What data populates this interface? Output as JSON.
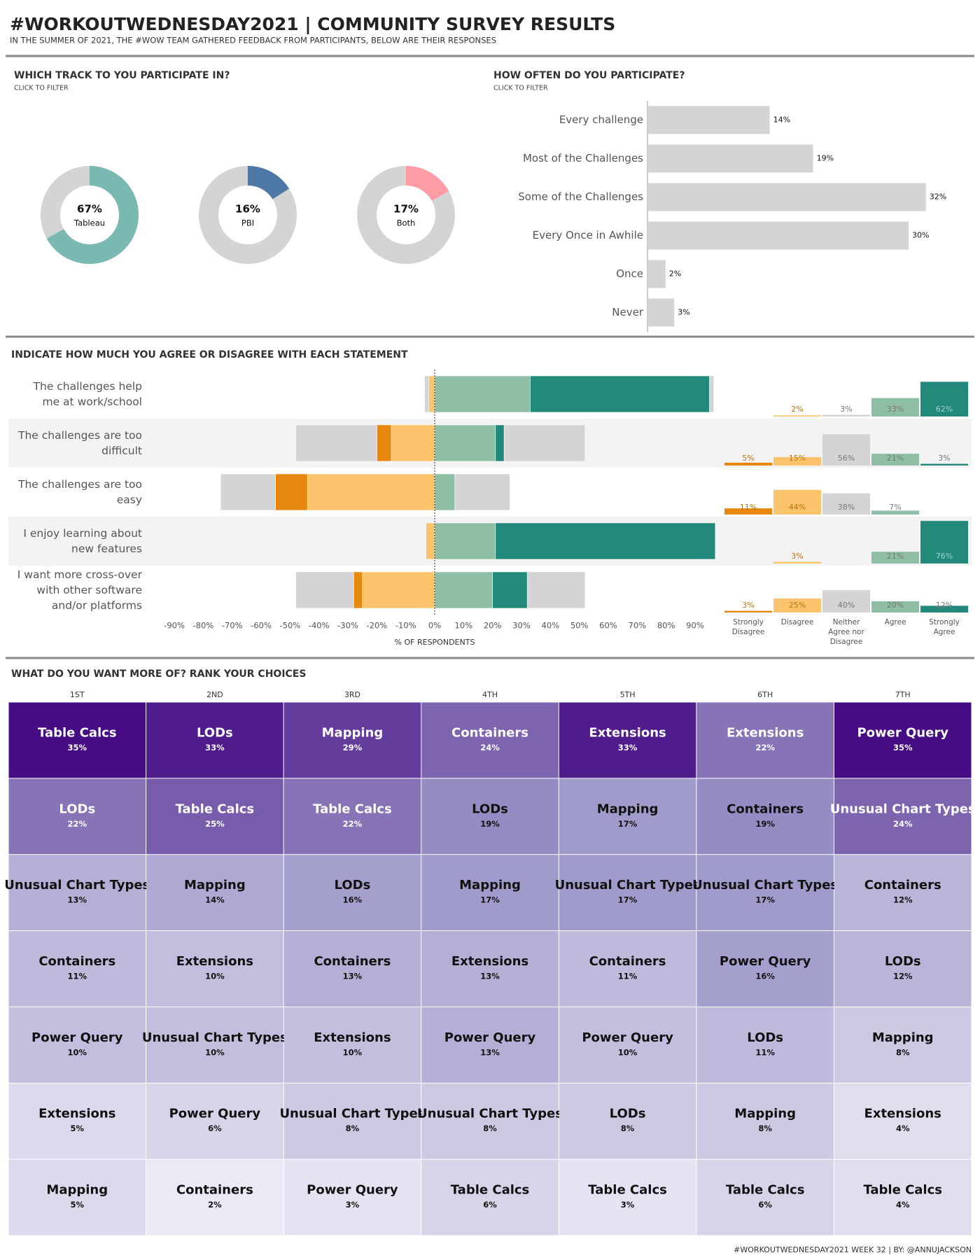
{
  "title": "#WORKOUTWEDNESDAY2021 | COMMUNITY SURVEY RESULTS",
  "subtitle": "IN THE SUMMER OF 2021, THE #WOW TEAM GATHERED FEEDBACK FROM PARTICIPANTS, BELOW ARE THEIR RESPONSES",
  "footer": "#WORKOUTWEDNESDAY2021 WEEK 32 | BY: @ANNUJACKSON",
  "chart_data": [
    {
      "type": "donut",
      "title": "WHICH TRACK TO YOU PARTICIPATE IN?",
      "subtitle": "CLICK TO FILTER",
      "categories": [
        "Tableau",
        "PBI",
        "Both"
      ],
      "values": [
        67,
        16,
        17
      ],
      "value_labels": [
        "67%",
        "16%",
        "17%"
      ],
      "colors": [
        "#7ab8b2",
        "#4e79a7",
        "#ff9da7"
      ],
      "rest_color": "#d4d4d4"
    },
    {
      "type": "hbar",
      "title": "HOW OFTEN DO YOU PARTICIPATE?",
      "subtitle": "CLICK TO FILTER",
      "categories": [
        "Every challenge",
        "Most of the Challenges",
        "Some of the Challenges",
        "Every Once in Awhile",
        "Once",
        "Never"
      ],
      "values": [
        14,
        19,
        32,
        30,
        2,
        3
      ],
      "value_labels": [
        "14%",
        "19%",
        "32%",
        "30%",
        "2%",
        "3%"
      ],
      "color": "#d4d4d4"
    },
    {
      "type": "diverging_bar",
      "title": "INDICATE HOW MUCH YOU AGREE OR DISAGREE WITH EACH STATEMENT",
      "categories": [
        "The challenges help me at work/school",
        "The challenges are too difficult",
        "The challenges are too easy",
        "I enjoy learning about new features",
        "I want more cross-over with other software and/or platforms"
      ],
      "series": [
        {
          "name": "Strongly Disagree",
          "color": "#e8870e",
          "values": [
            null,
            5,
            11,
            null,
            3
          ],
          "value_labels": [
            null,
            "5%",
            "11%",
            null,
            "3%"
          ]
        },
        {
          "name": "Disagree",
          "color": "#fbc46c",
          "values": [
            2,
            15,
            44,
            3,
            25
          ],
          "value_labels": [
            "2%",
            "15%",
            "44%",
            "3%",
            "25%"
          ]
        },
        {
          "name": "Neither Agree nor Disagree",
          "color": "#d4d4d4",
          "values": [
            3,
            56,
            38,
            null,
            40
          ],
          "value_labels": [
            "3%",
            "56%",
            "38%",
            null,
            "40%"
          ]
        },
        {
          "name": "Agree",
          "color": "#8fbea6",
          "values": [
            33,
            21,
            7,
            21,
            20
          ],
          "value_labels": [
            "33%",
            "21%",
            "7%",
            "21%",
            "20%"
          ]
        },
        {
          "name": "Strongly Agree",
          "color": "#23897b",
          "values": [
            62,
            3,
            null,
            76,
            12
          ],
          "value_labels": [
            "62%",
            "3%",
            null,
            "76%",
            "12%"
          ]
        }
      ],
      "xlim": [
        -98,
        98
      ],
      "xticks": [
        {
          "value": -90,
          "label": "-90%"
        },
        {
          "value": -80,
          "label": "-80%"
        },
        {
          "value": -70,
          "label": "-70%"
        },
        {
          "value": -60,
          "label": "-60%"
        },
        {
          "value": -50,
          "label": "-50%"
        },
        {
          "value": -40,
          "label": "-40%"
        },
        {
          "value": -30,
          "label": "-30%"
        },
        {
          "value": -20,
          "label": "-20%"
        },
        {
          "value": -10,
          "label": "-10%"
        },
        {
          "value": 0,
          "label": "0%"
        },
        {
          "value": 10,
          "label": "10%"
        },
        {
          "value": 20,
          "label": "20%"
        },
        {
          "value": 30,
          "label": "30%"
        },
        {
          "value": 40,
          "label": "40%"
        },
        {
          "value": 50,
          "label": "50%"
        },
        {
          "value": 60,
          "label": "60%"
        },
        {
          "value": 70,
          "label": "70%"
        },
        {
          "value": 80,
          "label": "80%"
        },
        {
          "value": 90,
          "label": "90%"
        }
      ],
      "xlabel": "% OF RESPONDENTS"
    },
    {
      "type": "rank_heatmap",
      "title": "WHAT DO YOU WANT MORE OF?  RANK YOUR CHOICES",
      "columns": [
        {
          "name": "1ST",
          "items": [
            "Table Calcs",
            "LODs",
            "Unusual Chart Types",
            "Containers",
            "Power Query",
            "Extensions",
            "Mapping"
          ],
          "values": [
            35,
            22,
            13,
            11,
            10,
            5,
            5
          ],
          "value_labels": [
            "35%",
            "22%",
            "13%",
            "11%",
            "10%",
            "5%",
            "5%"
          ]
        },
        {
          "name": "2ND",
          "items": [
            "LODs",
            "Table Calcs",
            "Mapping",
            "Extensions",
            "Unusual Chart Types",
            "Power Query",
            "Containers"
          ],
          "values": [
            33,
            25,
            14,
            10,
            10,
            6,
            2
          ],
          "value_labels": [
            "33%",
            "25%",
            "14%",
            "10%",
            "10%",
            "6%",
            "2%"
          ]
        },
        {
          "name": "3RD",
          "items": [
            "Mapping",
            "Table Calcs",
            "LODs",
            "Containers",
            "Extensions",
            "Unusual Chart Types",
            "Power Query"
          ],
          "values": [
            29,
            22,
            16,
            13,
            10,
            8,
            3
          ],
          "value_labels": [
            "29%",
            "22%",
            "16%",
            "13%",
            "10%",
            "8%",
            "3%"
          ]
        },
        {
          "name": "4TH",
          "items": [
            "Containers",
            "LODs",
            "Mapping",
            "Extensions",
            "Power Query",
            "Unusual Chart Types",
            "Table Calcs"
          ],
          "values": [
            24,
            19,
            17,
            13,
            13,
            8,
            6
          ],
          "value_labels": [
            "24%",
            "19%",
            "17%",
            "13%",
            "13%",
            "8%",
            "6%"
          ]
        },
        {
          "name": "5TH",
          "items": [
            "Extensions",
            "Mapping",
            "Unusual Chart Types",
            "Containers",
            "Power Query",
            "LODs",
            "Table Calcs"
          ],
          "values": [
            33,
            17,
            17,
            11,
            10,
            8,
            3
          ],
          "value_labels": [
            "33%",
            "17%",
            "17%",
            "11%",
            "10%",
            "8%",
            "3%"
          ]
        },
        {
          "name": "6TH",
          "items": [
            "Extensions",
            "Containers",
            "Unusual Chart Types",
            "Power Query",
            "LODs",
            "Mapping",
            "Table Calcs"
          ],
          "values": [
            22,
            19,
            17,
            16,
            11,
            8,
            6
          ],
          "value_labels": [
            "22%",
            "19%",
            "17%",
            "16%",
            "11%",
            "8%",
            "6%"
          ]
        },
        {
          "name": "7TH",
          "items": [
            "Power Query",
            "Unusual Chart Types",
            "Containers",
            "LODs",
            "Mapping",
            "Extensions",
            "Table Calcs"
          ],
          "values": [
            35,
            24,
            12,
            12,
            8,
            4,
            4
          ],
          "value_labels": [
            "35%",
            "24%",
            "12%",
            "12%",
            "8%",
            "4%",
            "4%"
          ]
        }
      ],
      "colors": [
        "#f4f3f9",
        "#9d98c9",
        "#450c84"
      ]
    }
  ]
}
